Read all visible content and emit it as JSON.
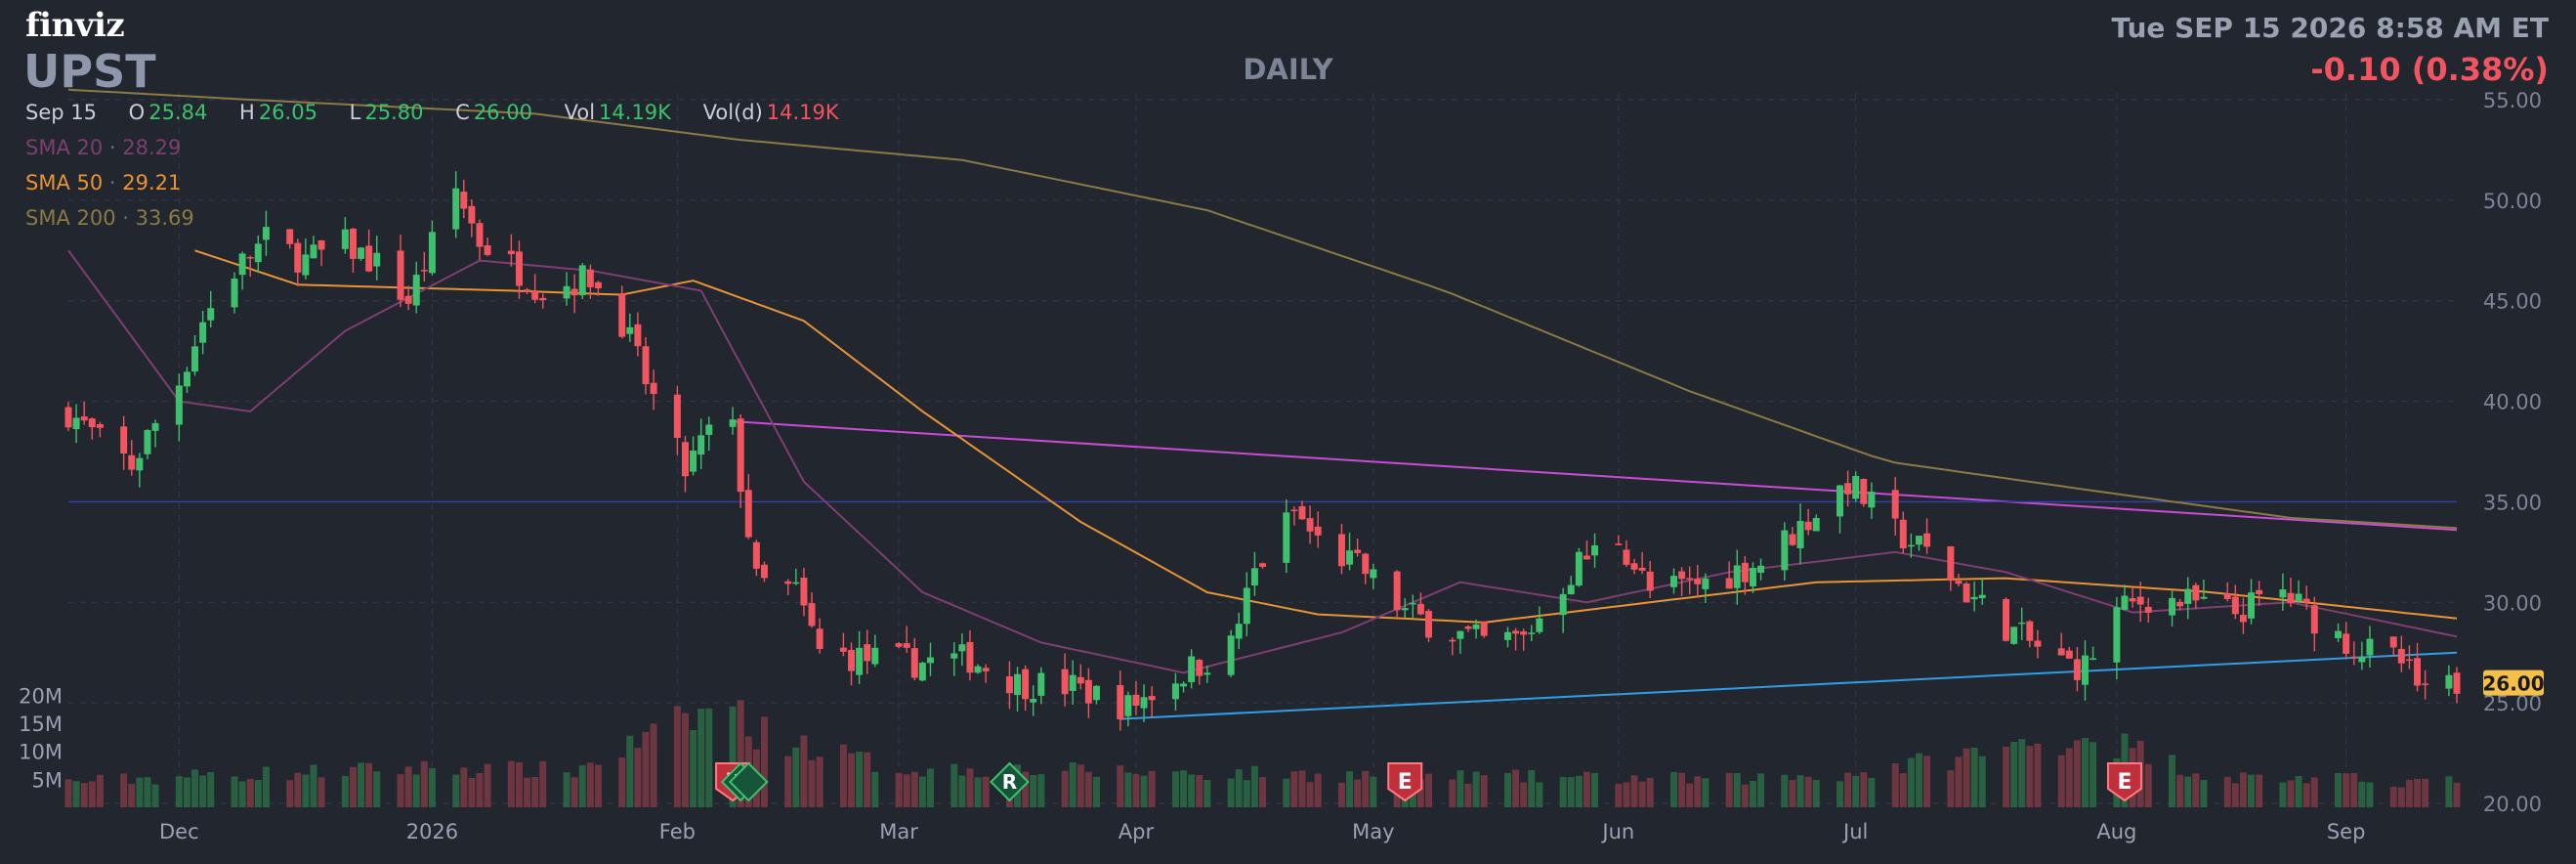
{
  "header": {
    "brand": "finviz",
    "ticker": "UPST",
    "period": "DAILY",
    "datetime": "Tue SEP 15 2026 8:58 AM ET",
    "change": "-0.10 (0.38%)"
  },
  "ohlc": {
    "date": "Sep 15",
    "open_label": "O",
    "open": "25.84",
    "high_label": "H",
    "high": "26.05",
    "low_label": "L",
    "low": "25.80",
    "close_label": "C",
    "close": "26.00",
    "vol_label": "Vol",
    "vol": "14.19K",
    "vold_label": "Vol(d)",
    "vold": "14.19K"
  },
  "indicators": [
    {
      "label": "SMA 20",
      "value": "28.29",
      "color": "#7d3f72"
    },
    {
      "label": "SMA 50",
      "value": "29.21",
      "color": "#e79336"
    },
    {
      "label": "SMA 200",
      "value": "33.69",
      "color": "#8a7a45"
    }
  ],
  "colors": {
    "up": "#3ec16d",
    "down": "#f2555f",
    "background": "#22262f",
    "grid": "#343946",
    "price_tag": "#f5c04a",
    "trendline_upper": "#c94bd6",
    "trendline_lower": "#2f9ee6",
    "support_line": "#3442a8"
  },
  "chart_data": {
    "type": "candlestick",
    "ylim": [
      20,
      55
    ],
    "y_ticks": [
      "55.00",
      "50.00",
      "45.00",
      "40.00",
      "35.00",
      "30.00",
      "25.00",
      "20.00"
    ],
    "x_ticks": [
      "Dec",
      "2026",
      "Feb",
      "Mar",
      "Apr",
      "May",
      "Jun",
      "Jul",
      "Aug",
      "Sep"
    ],
    "volume_ticks": [
      "20M",
      "15M",
      "10M",
      "5M"
    ],
    "last_price": "26.00",
    "grid": true,
    "anchors": [
      [
        "2025-11-17",
        39.5
      ],
      [
        "2025-11-21",
        38.0
      ],
      [
        "2025-11-25",
        36.8
      ],
      [
        "2025-12-01",
        41.0
      ],
      [
        "2025-12-04",
        44.0
      ],
      [
        "2025-12-08",
        46.5
      ],
      [
        "2025-12-12",
        48.0
      ],
      [
        "2025-12-17",
        47.0
      ],
      [
        "2025-12-22",
        47.8
      ],
      [
        "2025-12-26",
        46.8
      ],
      [
        "2025-12-30",
        45.0
      ],
      [
        "2026-01-05",
        50.5
      ],
      [
        "2026-01-08",
        48.0
      ],
      [
        "2026-01-13",
        46.5
      ],
      [
        "2026-01-16",
        45.5
      ],
      [
        "2026-01-22",
        46.2
      ],
      [
        "2026-01-26",
        44.0
      ],
      [
        "2026-01-29",
        41.0
      ],
      [
        "2026-02-03",
        36.5
      ],
      [
        "2026-02-06",
        38.5
      ],
      [
        "2026-02-09",
        38.5
      ],
      [
        "2026-02-12",
        31.0
      ],
      [
        "2026-02-17",
        30.5
      ],
      [
        "2026-02-20",
        27.5
      ],
      [
        "2026-02-26",
        27.2
      ],
      [
        "2026-03-04",
        27.0
      ],
      [
        "2026-03-11",
        27.2
      ],
      [
        "2026-03-17",
        26.0
      ],
      [
        "2026-03-24",
        25.8
      ],
      [
        "2026-03-31",
        24.8
      ],
      [
        "2026-04-07",
        26.5
      ],
      [
        "2026-04-13",
        27.8
      ],
      [
        "2026-04-16",
        31.5
      ],
      [
        "2026-04-21",
        34.5
      ],
      [
        "2026-04-24",
        33.0
      ],
      [
        "2026-04-30",
        31.5
      ],
      [
        "2026-05-05",
        29.5
      ],
      [
        "2026-05-11",
        28.5
      ],
      [
        "2026-05-15",
        28.0
      ],
      [
        "2026-05-20",
        28.2
      ],
      [
        "2026-05-27",
        32.0
      ],
      [
        "2026-06-01",
        33.2
      ],
      [
        "2026-06-05",
        30.5
      ],
      [
        "2026-06-12",
        31.0
      ],
      [
        "2026-06-19",
        32.0
      ],
      [
        "2026-06-26",
        34.5
      ],
      [
        "2026-06-30",
        36.0
      ],
      [
        "2026-07-06",
        33.5
      ],
      [
        "2026-07-10",
        32.5
      ],
      [
        "2026-07-15",
        30.5
      ],
      [
        "2026-07-21",
        28.5
      ],
      [
        "2026-07-27",
        27.0
      ],
      [
        "2026-07-30",
        26.8
      ],
      [
        "2026-08-03",
        29.5
      ],
      [
        "2026-08-07",
        30.2
      ],
      [
        "2026-08-12",
        30.0
      ],
      [
        "2026-08-18",
        29.5
      ],
      [
        "2026-08-24",
        30.5
      ],
      [
        "2026-08-27",
        29.5
      ],
      [
        "2026-09-02",
        27.8
      ],
      [
        "2026-09-08",
        27.0
      ],
      [
        "2026-09-11",
        25.2
      ],
      [
        "2026-09-15",
        26.0
      ]
    ],
    "sma20_anchors": [
      [
        "2025-11-17",
        47.5
      ],
      [
        "2025-12-01",
        40.0
      ],
      [
        "2025-12-10",
        39.5
      ],
      [
        "2025-12-22",
        43.5
      ],
      [
        "2026-01-08",
        47.0
      ],
      [
        "2026-01-22",
        46.5
      ],
      [
        "2026-02-05",
        45.5
      ],
      [
        "2026-02-18",
        36.0
      ],
      [
        "2026-03-05",
        30.5
      ],
      [
        "2026-03-20",
        28.0
      ],
      [
        "2026-04-07",
        26.5
      ],
      [
        "2026-04-27",
        28.5
      ],
      [
        "2026-05-12",
        31.0
      ],
      [
        "2026-05-28",
        30.0
      ],
      [
        "2026-06-15",
        31.5
      ],
      [
        "2026-07-06",
        32.5
      ],
      [
        "2026-07-20",
        31.5
      ],
      [
        "2026-08-05",
        29.5
      ],
      [
        "2026-08-25",
        30.0
      ],
      [
        "2026-09-15",
        28.3
      ]
    ],
    "sma50_anchors": [
      [
        "2025-12-03",
        47.5
      ],
      [
        "2025-12-16",
        45.8
      ],
      [
        "2026-01-12",
        45.5
      ],
      [
        "2026-01-26",
        45.3
      ],
      [
        "2026-02-04",
        46.0
      ],
      [
        "2026-02-18",
        44.0
      ],
      [
        "2026-03-05",
        39.5
      ],
      [
        "2026-03-25",
        34.0
      ],
      [
        "2026-04-10",
        30.5
      ],
      [
        "2026-04-24",
        29.4
      ],
      [
        "2026-05-15",
        29.0
      ],
      [
        "2026-06-05",
        30.0
      ],
      [
        "2026-06-26",
        31.0
      ],
      [
        "2026-07-20",
        31.2
      ],
      [
        "2026-08-15",
        30.5
      ],
      [
        "2026-09-15",
        29.2
      ]
    ],
    "sma200_anchors": [
      [
        "2025-11-17",
        55.5
      ],
      [
        "2025-12-10",
        55.0
      ],
      [
        "2026-01-15",
        54.3
      ],
      [
        "2026-02-10",
        53.0
      ],
      [
        "2026-03-10",
        52.0
      ],
      [
        "2026-04-10",
        49.5
      ],
      [
        "2026-05-10",
        45.5
      ],
      [
        "2026-06-10",
        40.5
      ],
      [
        "2026-07-05",
        37.0
      ],
      [
        "2026-08-01",
        35.5
      ],
      [
        "2026-08-25",
        34.2
      ],
      [
        "2026-09-15",
        33.7
      ]
    ],
    "volume_anchors": [
      [
        "2025-11-17",
        4.5
      ],
      [
        "2025-12-01",
        5.5
      ],
      [
        "2026-01-02",
        7.0
      ],
      [
        "2026-01-20",
        6.5
      ],
      [
        "2026-02-09",
        19.0
      ],
      [
        "2026-02-11",
        14.0
      ],
      [
        "2026-03-01",
        7.0
      ],
      [
        "2026-04-15",
        6.0
      ],
      [
        "2026-05-10",
        5.5
      ],
      [
        "2026-06-15",
        5.0
      ],
      [
        "2026-07-01",
        6.0
      ],
      [
        "2026-07-31",
        13.0
      ],
      [
        "2026-08-15",
        5.5
      ],
      [
        "2026-09-15",
        4.5
      ]
    ],
    "trendlines": [
      {
        "name": "resistance",
        "from": [
          "2026-02-09",
          39.0
        ],
        "to": [
          "2026-09-15",
          33.6
        ]
      },
      {
        "name": "support",
        "from": [
          "2026-03-30",
          24.2
        ],
        "to": [
          "2026-09-15",
          27.5
        ]
      },
      {
        "name": "horizontal",
        "from": [
          "2025-11-17",
          35.0
        ],
        "to": [
          "2026-09-15",
          35.0
        ]
      }
    ],
    "events": [
      {
        "type": "E",
        "date": "2026-02-09"
      },
      {
        "type": "R",
        "date": "2026-02-10"
      },
      {
        "type": "S",
        "date": "2026-02-11"
      },
      {
        "type": "R",
        "date": "2026-03-16"
      },
      {
        "type": "E",
        "date": "2026-05-05"
      },
      {
        "type": "E",
        "date": "2026-08-04"
      }
    ]
  }
}
